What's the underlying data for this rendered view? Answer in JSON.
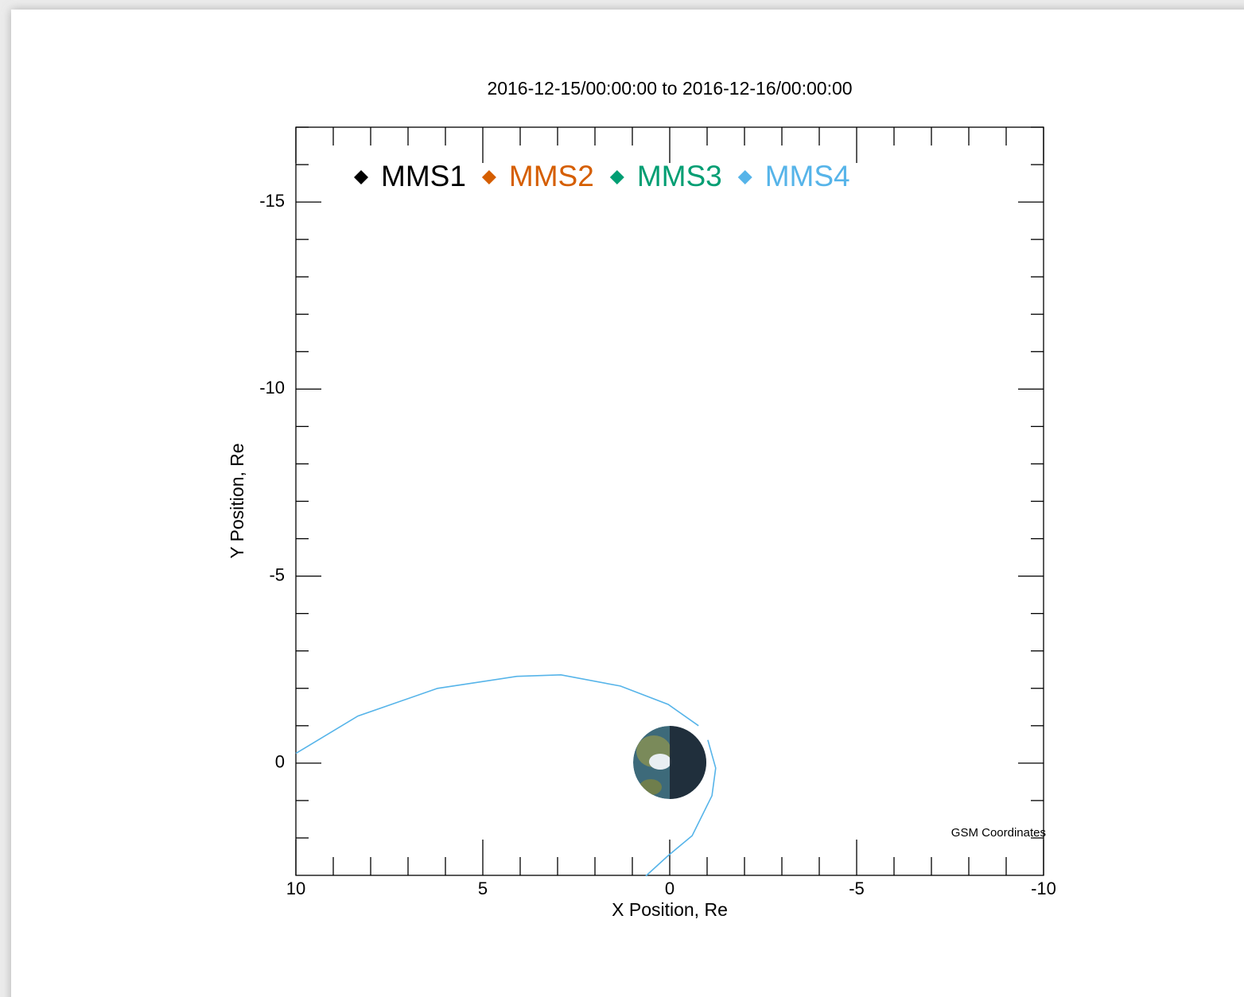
{
  "chart_data": {
    "type": "line",
    "title": "2016-12-15/00:00:00 to 2016-12-16/00:00:00",
    "xlabel": "X Position, Re",
    "ylabel": "Y Position, Re",
    "annotation": "GSM Coordinates",
    "xlim": [
      10,
      -10
    ],
    "ylim": [
      3,
      -17
    ],
    "xticks": [
      10,
      5,
      0,
      -5,
      -10
    ],
    "yticks": [
      -15,
      -10,
      -5,
      0
    ],
    "xminorticks": [
      9,
      8,
      7,
      6,
      4,
      3,
      2,
      1,
      -1,
      -2,
      -3,
      -4,
      -6,
      -7,
      -8,
      -9
    ],
    "yminorticks": [
      -17,
      -16,
      -14,
      -13,
      -12,
      -11,
      -9,
      -8,
      -7,
      -6,
      -4,
      -3,
      -2,
      -1,
      1,
      2
    ],
    "series": [
      {
        "name": "MMS1",
        "color": "#000000"
      },
      {
        "name": "MMS2",
        "color": "#d55e00"
      },
      {
        "name": "MMS3",
        "color": "#009e73"
      },
      {
        "name": "MMS4",
        "color": "#56b4e9",
        "x": [
          10,
          8.34,
          6.21,
          4.09,
          2.91,
          1.32,
          0.04,
          -0.77,
          null,
          -1.02,
          -1.23,
          -1.13,
          -0.6,
          0.04,
          0.64
        ],
        "y": [
          -0.26,
          -1.26,
          -2.0,
          -2.32,
          -2.36,
          -2.06,
          -1.57,
          -1.0,
          null,
          -0.62,
          0.13,
          0.87,
          1.94,
          2.47,
          3.02
        ]
      }
    ]
  }
}
